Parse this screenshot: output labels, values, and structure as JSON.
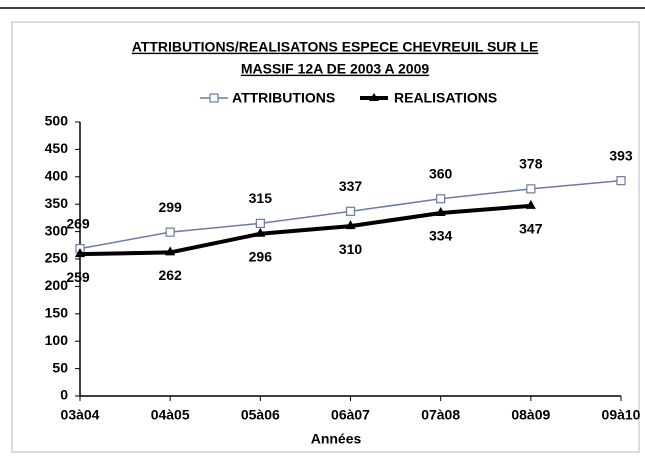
{
  "chart_data": {
    "type": "line",
    "title": [
      "ATTRIBUTIONS/REALISATONS ESPECE CHEVREUIL SUR LE",
      "MASSIF 12A DE 2003 A 2009"
    ],
    "x_label": "Années",
    "categories": [
      "03à04",
      "04à05",
      "05à06",
      "06à07",
      "07à08",
      "08à09",
      "09à10"
    ],
    "series": [
      {
        "name": "ATTRIBUTIONS",
        "color": "#6c7aa8",
        "values": [
          269,
          299,
          315,
          337,
          360,
          378,
          393
        ]
      },
      {
        "name": "REALISATIONS",
        "color": "#000000",
        "values": [
          259,
          262,
          296,
          310,
          334,
          347,
          null
        ]
      }
    ],
    "ylim": [
      0,
      500
    ],
    "yticks": [
      0,
      50,
      100,
      150,
      200,
      250,
      300,
      350,
      400,
      450,
      500
    ],
    "grid": false,
    "legend": "top"
  }
}
